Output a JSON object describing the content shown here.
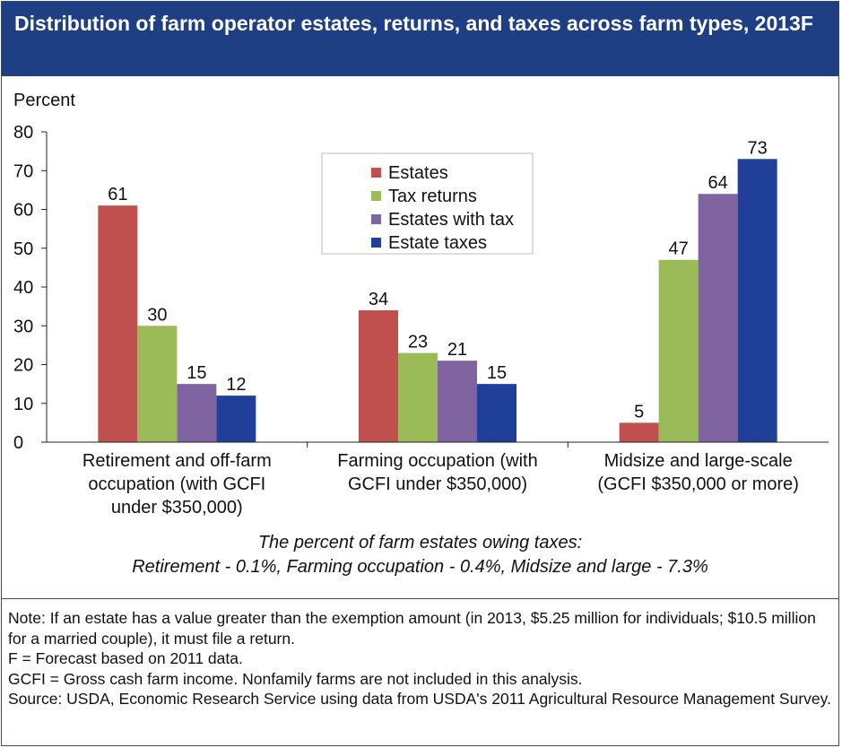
{
  "header": {
    "title": "Distribution of farm operator estates, returns, and taxes across farm types, 2013F"
  },
  "chart_data": {
    "type": "bar",
    "ylabel": "Percent",
    "ylim": [
      0,
      80
    ],
    "yticks": [
      0,
      10,
      20,
      30,
      40,
      50,
      60,
      70,
      80
    ],
    "grid": false,
    "legend_position": "top-center",
    "categories": [
      [
        "Retirement and off-farm",
        "occupation (with GCFI",
        "under $350,000)"
      ],
      [
        "Farming occupation (with",
        "GCFI under $350,000)"
      ],
      [
        "Midsize and large-scale",
        "(GCFI $350,000 or more)"
      ]
    ],
    "series": [
      {
        "name": "Estates",
        "color": "#c0504d",
        "values": [
          61,
          34,
          5
        ]
      },
      {
        "name": "Tax returns",
        "color": "#9bbb59",
        "values": [
          30,
          23,
          47
        ]
      },
      {
        "name": "Estates with tax",
        "color": "#8064a2",
        "values": [
          15,
          21,
          64
        ]
      },
      {
        "name": "Estate taxes",
        "color": "#1f3f99",
        "values": [
          12,
          15,
          73
        ]
      }
    ]
  },
  "subnote": {
    "line1": "The percent of farm estates owing taxes:",
    "line2": "Retirement - 0.1%, Farming occupation - 0.4%, Midsize and large - 7.3%"
  },
  "notes": [
    "Note: If an estate has a value greater than the exemption amount (in 2013, $5.25 million for individuals; $10.5 million for a married couple), it must file a return.",
    "F = Forecast based on 2011 data.",
    "GCFI = Gross cash farm income. Nonfamily farms are not included in this analysis.",
    "Source: USDA, Economic Research Service using data from USDA's 2011 Agricultural Resource Management Survey."
  ]
}
